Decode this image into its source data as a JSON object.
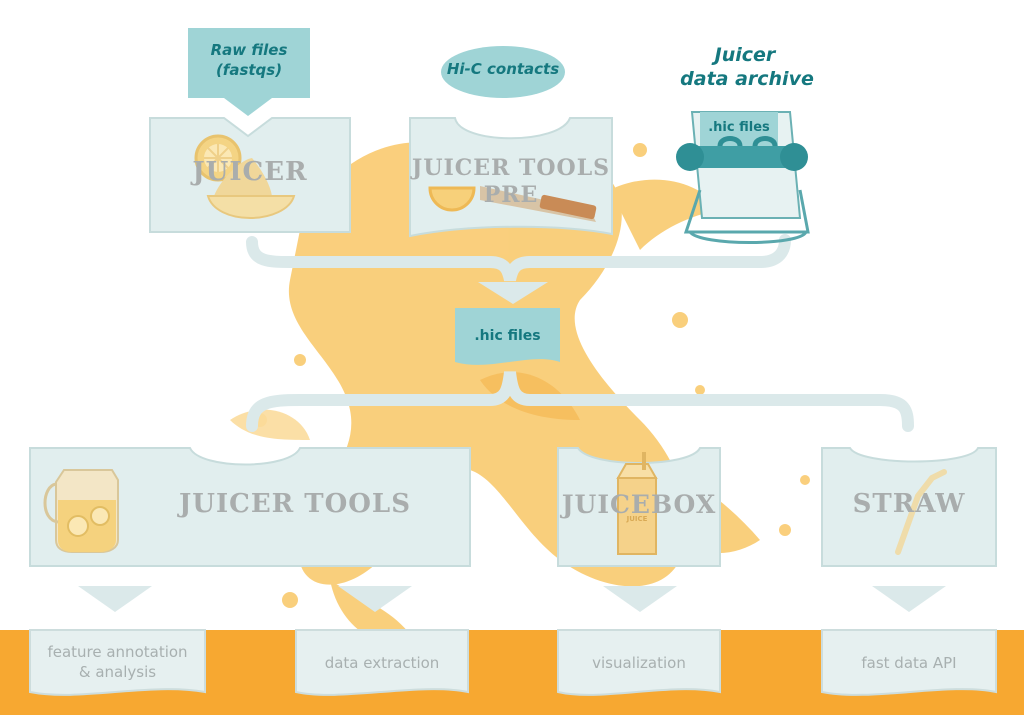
{
  "top": {
    "raw_files": "Raw files\n(fastqs)",
    "hic_contacts": "Hi-C contacts",
    "archive_title_1": "Juicer",
    "archive_title_2": "data archive",
    "archive_card": ".hic files"
  },
  "tools": {
    "juicer": "JUICER",
    "pre_1": "JUICER TOOLS",
    "pre_2": "PRE",
    "juicer_tools": "JUICER TOOLS",
    "juicebox": "JUICEBOX",
    "straw": "STRAW"
  },
  "middle": {
    "hic_files": ".hic files"
  },
  "carton_text": "JUICE",
  "outputs": {
    "feature_1": "feature annotation",
    "feature_2": "& analysis",
    "extraction": "data extraction",
    "visualization": "visualization",
    "api": "fast data API"
  },
  "colors": {
    "teal_fill": "#9fd4d6",
    "teal_text": "#15787f",
    "panel_fill": "#e1eeee",
    "splash": "#f8c05a",
    "bar": "#f7a831"
  }
}
